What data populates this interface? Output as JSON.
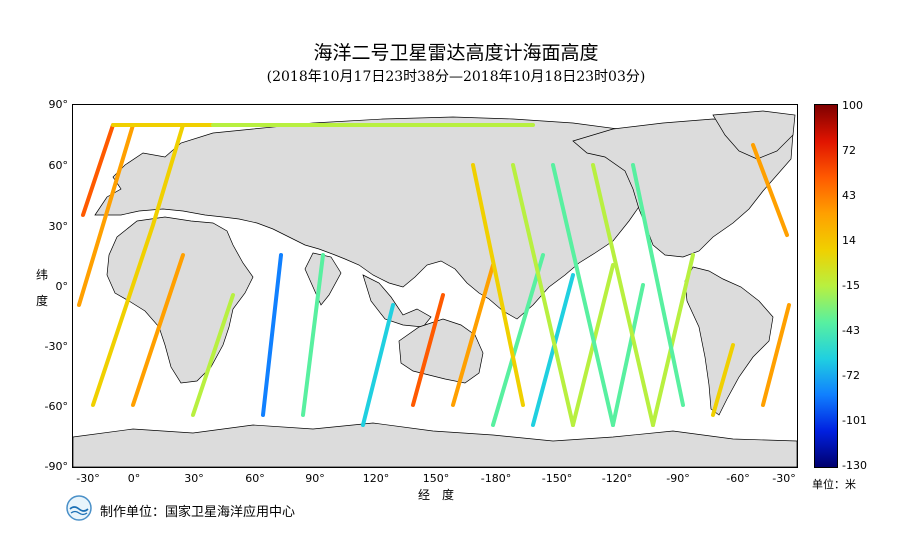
{
  "title": "海洋二号卫星雷达高度计海面高度",
  "subtitle": "(2018年10月17日23时38分—2018年10月18日23时03分)",
  "axes": {
    "y_label_line1": "纬",
    "y_label_line2": "度",
    "x_label": "经　度",
    "y_ticks": [
      "90°",
      "60°",
      "30°",
      "0°",
      "-30°",
      "-60°",
      "-90°"
    ],
    "x_ticks": [
      "-30°",
      "0°",
      "30°",
      "60°",
      "90°",
      "120°",
      "150°",
      "-180°",
      "-150°",
      "-120°",
      "-90°",
      "-60°",
      "-30°"
    ]
  },
  "colorbar": {
    "ticks": [
      "100",
      "72",
      "43",
      "14",
      "-15",
      "-43",
      "-72",
      "-101",
      "-130"
    ],
    "unit": "单位：米"
  },
  "footer": {
    "text": "制作单位：国家卫星海洋应用中心"
  },
  "colors": {
    "land": "#dcdcdc",
    "ocean": "#ffffff",
    "coast": "#000000"
  }
}
